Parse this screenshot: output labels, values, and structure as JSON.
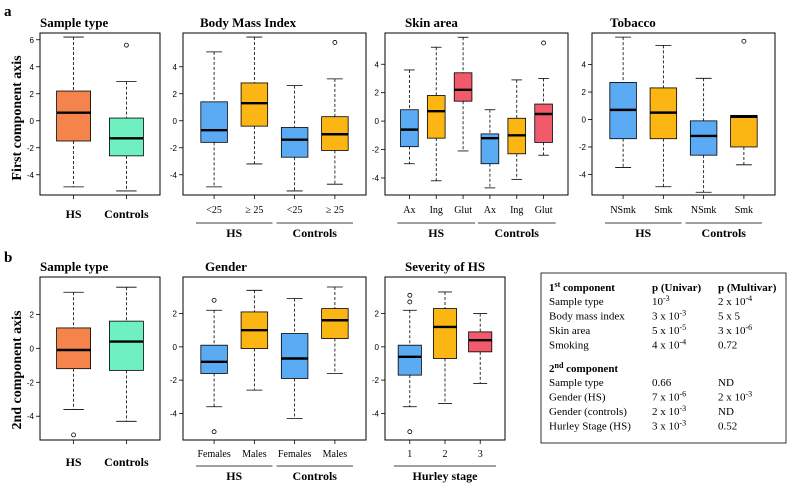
{
  "figure": {
    "label_a": "a",
    "label_b": "b",
    "ylabel_a": "First component axis",
    "ylabel_b": "2nd component axis"
  },
  "chart_data": [
    {
      "id": "a1",
      "type": "box",
      "title": "Sample type",
      "ylim": [
        -5.5,
        6.5
      ],
      "yticks": [
        -4,
        -2,
        0,
        2,
        4,
        6
      ],
      "categories": [
        "HS",
        "Controls"
      ],
      "cat_style": "bold",
      "boxes": [
        {
          "lo": -4.9,
          "q1": -1.5,
          "med": 0.6,
          "q3": 2.2,
          "hi": 6.2,
          "out": [],
          "color": "#f4844c"
        },
        {
          "lo": -5.2,
          "q1": -2.6,
          "med": -1.3,
          "q3": 0.2,
          "hi": 2.9,
          "out": [
            5.6
          ],
          "color": "#6ef0c0"
        }
      ],
      "groups": []
    },
    {
      "id": "a2",
      "type": "box",
      "title": "Body Mass Index",
      "ylim": [
        -5.5,
        6.5
      ],
      "yticks": [
        -4,
        -2,
        0,
        2,
        4
      ],
      "categories": [
        "<25",
        "≥ 25",
        "<25",
        "≥ 25"
      ],
      "cat_style": "normal",
      "boxes": [
        {
          "lo": -4.9,
          "q1": -1.6,
          "med": -0.7,
          "q3": 1.4,
          "hi": 5.1,
          "out": [],
          "color": "#5aaaf4"
        },
        {
          "lo": -3.2,
          "q1": -0.4,
          "med": 1.3,
          "q3": 2.8,
          "hi": 6.2,
          "out": [],
          "color": "#fbb614"
        },
        {
          "lo": -5.2,
          "q1": -2.7,
          "med": -1.4,
          "q3": -0.5,
          "hi": 2.6,
          "out": [],
          "color": "#5aaaf4"
        },
        {
          "lo": -4.7,
          "q1": -2.2,
          "med": -1.0,
          "q3": 0.3,
          "hi": 3.1,
          "out": [
            5.8
          ],
          "color": "#fbb614"
        }
      ],
      "groups": [
        {
          "label": "HS",
          "from": 0,
          "to": 1
        },
        {
          "label": "Controls",
          "from": 2,
          "to": 3
        }
      ]
    },
    {
      "id": "a3",
      "type": "box",
      "title": "Skin area",
      "ylim": [
        -5.2,
        6.2
      ],
      "yticks": [
        -4,
        -2,
        0,
        2,
        4
      ],
      "categories": [
        "Ax",
        "Ing",
        "Glut",
        "Ax",
        "Ing",
        "Glut"
      ],
      "cat_style": "normal",
      "boxes": [
        {
          "lo": -3.0,
          "q1": -1.8,
          "med": -0.6,
          "q3": 0.8,
          "hi": 3.6,
          "out": [],
          "color": "#5aaaf4"
        },
        {
          "lo": -4.2,
          "q1": -1.2,
          "med": 0.7,
          "q3": 1.8,
          "hi": 5.2,
          "out": [],
          "color": "#fbb614"
        },
        {
          "lo": -2.1,
          "q1": 1.4,
          "med": 2.2,
          "q3": 3.4,
          "hi": 5.9,
          "out": [],
          "color": "#f05a6a"
        },
        {
          "lo": -4.7,
          "q1": -3.0,
          "med": -1.2,
          "q3": -0.9,
          "hi": 0.8,
          "out": [],
          "color": "#5aaaf4"
        },
        {
          "lo": -4.1,
          "q1": -2.3,
          "med": -1.0,
          "q3": 0.2,
          "hi": 2.9,
          "out": [],
          "color": "#fbb614"
        },
        {
          "lo": -2.4,
          "q1": -1.5,
          "med": 0.5,
          "q3": 1.2,
          "hi": 3.0,
          "out": [
            5.5
          ],
          "color": "#f05a6a"
        }
      ],
      "groups": [
        {
          "label": "HS",
          "from": 0,
          "to": 2
        },
        {
          "label": "Controls",
          "from": 3,
          "to": 5
        }
      ]
    },
    {
      "id": "a4",
      "type": "box",
      "title": "Tobacco",
      "ylim": [
        -5.5,
        6.3
      ],
      "yticks": [
        -4,
        -2,
        0,
        2,
        4
      ],
      "categories": [
        "NSmk",
        "Smk",
        "NSmk",
        "Smk"
      ],
      "cat_style": "normal",
      "boxes": [
        {
          "lo": -3.5,
          "q1": -1.4,
          "med": 0.7,
          "q3": 2.7,
          "hi": 6.0,
          "out": [],
          "color": "#5aaaf4"
        },
        {
          "lo": -4.9,
          "q1": -1.4,
          "med": 0.5,
          "q3": 2.3,
          "hi": 5.4,
          "out": [],
          "color": "#fbb614"
        },
        {
          "lo": -5.3,
          "q1": -2.6,
          "med": -1.2,
          "q3": -0.1,
          "hi": 3.0,
          "out": [],
          "color": "#5aaaf4"
        },
        {
          "lo": -3.3,
          "q1": -2.0,
          "med": 0.2,
          "q3": 0.3,
          "hi": 0.3,
          "out": [
            5.7
          ],
          "color": "#fbb614"
        }
      ],
      "groups": [
        {
          "label": "HS",
          "from": 0,
          "to": 1
        },
        {
          "label": "Controls",
          "from": 2,
          "to": 3
        }
      ]
    },
    {
      "id": "b1",
      "type": "box",
      "title": "Sample type",
      "ylim": [
        -5.4,
        4.2
      ],
      "yticks": [
        -4,
        -2,
        0,
        2
      ],
      "categories": [
        "HS",
        "Controls"
      ],
      "cat_style": "bold",
      "boxes": [
        {
          "lo": -3.6,
          "q1": -1.2,
          "med": -0.1,
          "q3": 1.2,
          "hi": 3.3,
          "out": [
            -5.1
          ],
          "color": "#f4844c"
        },
        {
          "lo": -4.3,
          "q1": -1.3,
          "med": 0.4,
          "q3": 1.6,
          "hi": 3.6,
          "out": [],
          "color": "#6ef0c0"
        }
      ],
      "groups": []
    },
    {
      "id": "b2",
      "type": "box",
      "title": "Gender",
      "ylim": [
        -5.6,
        4.2
      ],
      "yticks": [
        -4,
        -2,
        0,
        2
      ],
      "categories": [
        "Females",
        "Males",
        "Females",
        "Males"
      ],
      "cat_style": "normal",
      "boxes": [
        {
          "lo": -3.6,
          "q1": -1.6,
          "med": -0.9,
          "q3": 0.1,
          "hi": 2.2,
          "out": [
            2.8,
            -5.1
          ],
          "color": "#5aaaf4"
        },
        {
          "lo": -2.6,
          "q1": -0.1,
          "med": 1.0,
          "q3": 2.1,
          "hi": 3.4,
          "out": [],
          "color": "#fbb614"
        },
        {
          "lo": -4.3,
          "q1": -1.9,
          "med": -0.7,
          "q3": 0.8,
          "hi": 2.9,
          "out": [],
          "color": "#5aaaf4"
        },
        {
          "lo": -1.6,
          "q1": 0.5,
          "med": 1.6,
          "q3": 2.3,
          "hi": 3.6,
          "out": [],
          "color": "#fbb614"
        }
      ],
      "groups": [
        {
          "label": "HS",
          "from": 0,
          "to": 1
        },
        {
          "label": "Controls",
          "from": 2,
          "to": 3
        }
      ]
    },
    {
      "id": "b3",
      "type": "box",
      "title": "Severity of HS",
      "ylim": [
        -5.6,
        4.2
      ],
      "yticks": [
        -4,
        -2,
        0,
        2
      ],
      "categories": [
        "1",
        "2",
        "3"
      ],
      "cat_style": "normal",
      "boxes": [
        {
          "lo": -3.6,
          "q1": -1.7,
          "med": -0.6,
          "q3": 0.1,
          "hi": 2.2,
          "out": [
            3.1,
            2.7,
            -5.1
          ],
          "color": "#5aaaf4"
        },
        {
          "lo": -3.4,
          "q1": -0.7,
          "med": 1.2,
          "q3": 2.3,
          "hi": 3.3,
          "out": [],
          "color": "#fbb614"
        },
        {
          "lo": -2.2,
          "q1": -0.3,
          "med": 0.4,
          "q3": 0.9,
          "hi": 2.0,
          "out": [],
          "color": "#f05a6a"
        }
      ],
      "groups": [
        {
          "label": "Hurley stage",
          "from": 0,
          "to": 2
        }
      ]
    }
  ],
  "stats_table": {
    "sec1_title_a": "1",
    "sec1_title_sup": "st",
    "sec1_title_b": " component",
    "col_univar": "p (Univar)",
    "col_multivar": "p (Multivar)",
    "sec1_rows": [
      {
        "label": "Sample type",
        "u_base": "10",
        "u_exp": "-3",
        "m_base": "2 x 10",
        "m_exp": "-4"
      },
      {
        "label": "Body mass index",
        "u_base": "3 x 10",
        "u_exp": "-3",
        "m_base": "5 x 5",
        "m_exp": ""
      },
      {
        "label": "Skin area",
        "u_base": "5 x 10",
        "u_exp": "-5",
        "m_base": "3 x 10",
        "m_exp": "-6"
      },
      {
        "label": "Smoking",
        "u_base": "4 x 10",
        "u_exp": "-4",
        "m_base": "0.72",
        "m_exp": ""
      }
    ],
    "sec2_title_a": "2",
    "sec2_title_sup": "nd",
    "sec2_title_b": " component",
    "sec2_rows": [
      {
        "label": "Sample type",
        "u_base": "0.66",
        "u_exp": "",
        "m_base": "ND",
        "m_exp": ""
      },
      {
        "label": "Gender (HS)",
        "u_base": "7 x 10",
        "u_exp": "-6",
        "m_base": "2 x 10",
        "m_exp": "-3"
      },
      {
        "label": "Gender (controls)",
        "u_base": "2 x 10",
        "u_exp": "-3",
        "m_base": "ND",
        "m_exp": ""
      },
      {
        "label": "Hurley Stage (HS)",
        "u_base": "3 x 10",
        "u_exp": "-3",
        "m_base": "0.52",
        "m_exp": ""
      }
    ]
  }
}
